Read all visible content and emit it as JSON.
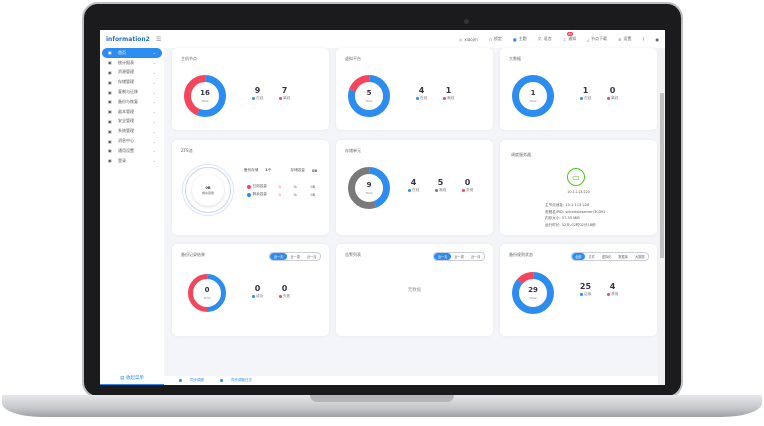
{
  "colors": {
    "accent": "#2d8cf0",
    "online": "#2d8cf0",
    "offline": "#f5455c",
    "grey": "#7a7a7a",
    "server_icon": "#52c41a"
  },
  "logo": {
    "text": "information2",
    "menu_icon": "menu-fold-icon"
  },
  "sidebar": {
    "items": [
      {
        "label": "首页",
        "icon": "home-icon",
        "active": true
      },
      {
        "label": "统计报表",
        "icon": "report-icon"
      },
      {
        "label": "资源管理",
        "icon": "resource-icon"
      },
      {
        "label": "存储管理",
        "icon": "storage-icon"
      },
      {
        "label": "复制与迁移",
        "icon": "copy-icon"
      },
      {
        "label": "备份与恢复",
        "icon": "backup-icon"
      },
      {
        "label": "副本管理",
        "icon": "replica-icon"
      },
      {
        "label": "安全管理",
        "icon": "lock-icon"
      },
      {
        "label": "系统管理",
        "icon": "gear-icon"
      },
      {
        "label": "消息中心",
        "icon": "message-icon"
      },
      {
        "label": "通用设置",
        "icon": "settings-icon"
      },
      {
        "label": "登录",
        "icon": "login-icon"
      }
    ],
    "collapse_label": "收起菜单"
  },
  "topbar": {
    "user": "xiaojm",
    "lock": "锁定",
    "theme": "主题",
    "language": "语言",
    "notify": "通知",
    "notify_count": "21",
    "download": "节点下载",
    "settings": "设置",
    "help": "?"
  },
  "cards": {
    "hosts": {
      "title": "主机节点",
      "total": "16",
      "total_label": "Total",
      "online": "9",
      "online_label": "在线",
      "offline": "7",
      "offline_label": "离线"
    },
    "virtual": {
      "title": "虚拟平台",
      "total": "5",
      "total_label": "Total",
      "online": "4",
      "online_label": "在线",
      "offline": "1",
      "offline_label": "离线"
    },
    "bigdata": {
      "title": "大数据",
      "total": "1",
      "total_label": "Total",
      "online": "1",
      "online_label": "在线",
      "offline": "0",
      "offline_label": "离线"
    },
    "zfs": {
      "title": "ZFS池",
      "backup_storage_label": "备份存储",
      "backup_storage": "1个",
      "capacity_label": "存储容量",
      "capacity": "0B",
      "center_value": "0B",
      "center_label": "剩余容量",
      "rows": [
        {
          "label": "已用容量",
          "value": "0",
          "unit": "%",
          "size": "0B",
          "color": "#f5455c"
        },
        {
          "label": "剩余容量",
          "value": "0",
          "unit": "%",
          "size": "0B",
          "color": "#2d8cf0"
        }
      ]
    },
    "storage": {
      "title": "存储单元",
      "total": "9",
      "total_label": "Total",
      "online": "4",
      "online_label": "在线",
      "offline": "5",
      "offline_label": "离线",
      "error": "0",
      "error_label": "异常"
    },
    "scheduler": {
      "title": "调度服务器",
      "ip": "10.1.113.220",
      "lines": [
        "主节点地址: 10.1.113.220",
        "进程名/PID: scheduleserver/30391",
        "内存大小: 57.55 MiB",
        "运行时长: 52天-02时02分18秒"
      ]
    },
    "backup_result": {
      "title": "备份记录结果",
      "tabs": [
        "近一天",
        "近一周",
        "近一月"
      ],
      "active_tab": 0,
      "total": "0",
      "total_label": "Total",
      "success": "0",
      "success_label": "成功",
      "fail": "0",
      "fail_label": "失败"
    },
    "alarms": {
      "title": "告警列表",
      "tabs": [
        "近一天",
        "近一周",
        "近一月"
      ],
      "active_tab": 0,
      "empty": "无数据"
    },
    "rules": {
      "title": "备份规则状态",
      "tabs": [
        "全部",
        "文件",
        "虚拟化",
        "数据库",
        "大数据"
      ],
      "active_tab": 0,
      "total": "29",
      "total_label": "Total",
      "enabled": "25",
      "enabled_label": "启用",
      "disabled": "4",
      "disabled_label": "禁用"
    }
  },
  "bottombar": {
    "items": [
      "同步调度",
      "同步调度日志"
    ]
  }
}
